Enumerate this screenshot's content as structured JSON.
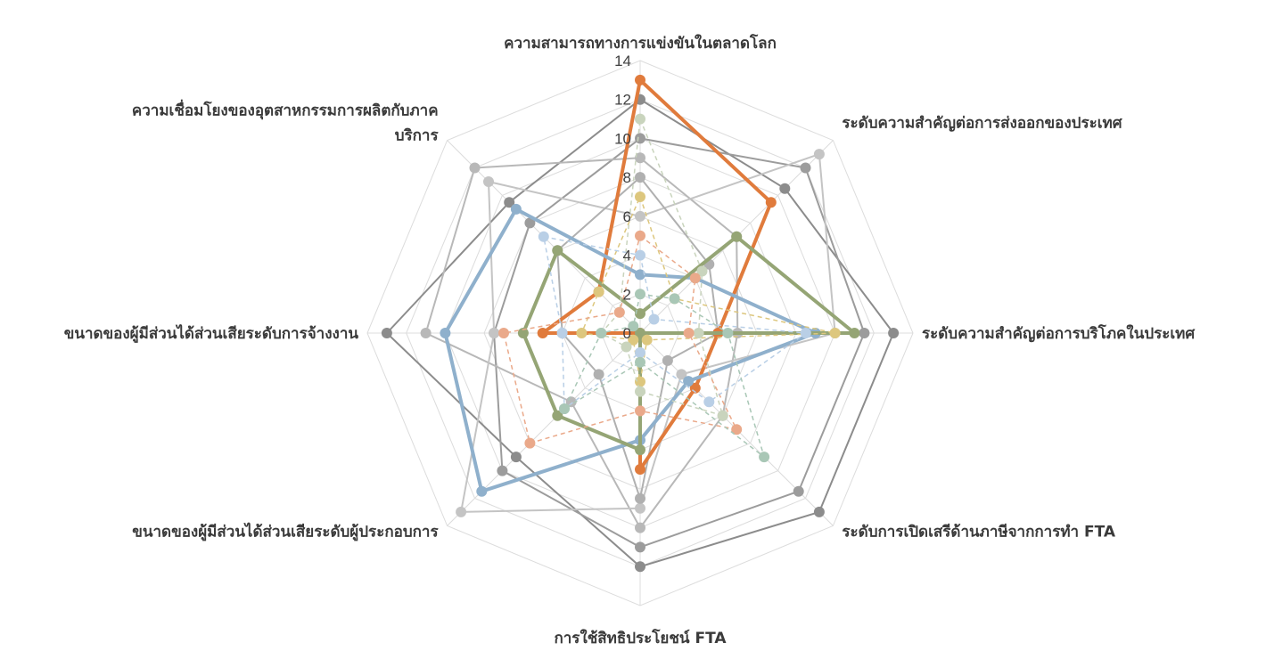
{
  "chart_data": {
    "type": "radar",
    "axes": [
      [
        "ความสามารถทางการแข่งขันในตลาดโลก"
      ],
      [
        "ระดับความสำคัญต่อการส่งออกของประเทศ"
      ],
      [
        "ระดับความสำคัญต่อการบริโภคในประเทศ"
      ],
      [
        "ระดับการเปิดเสรีด้านภาษีจากการทำ FTA"
      ],
      [
        "การใช้สิทธิประโยชน์ FTA"
      ],
      [
        "ขนาดของผู้มีส่วนได้ส่วนเสียระดับผู้ประกอบการ"
      ],
      [
        "ขนาดของผู้มีส่วนได้ส่วนเสียระดับการจ้างงาน"
      ],
      [
        "ความเชื่อมโยงของอุตสาหกรรมการผลิตกับภาค",
        "บริการ"
      ]
    ],
    "ticks": [
      "0",
      "2",
      "4",
      "6",
      "8",
      "10",
      "12",
      "14"
    ],
    "rmax": 14,
    "grid": true,
    "series": [
      {
        "color": "#8c8c8c",
        "width": 2,
        "dashed": false,
        "values": [
          12,
          10.5,
          13,
          13,
          12,
          9,
          13,
          9.5
        ]
      },
      {
        "color": "#9c9c9c",
        "width": 2,
        "dashed": false,
        "values": [
          10,
          12,
          11.5,
          11.5,
          11,
          10,
          7.5,
          8
        ]
      },
      {
        "color": "#b8b8b8",
        "width": 2,
        "dashed": false,
        "values": [
          9,
          7,
          5,
          6,
          10,
          5,
          11,
          12
        ]
      },
      {
        "color": "#c4c4c4",
        "width": 2,
        "dashed": false,
        "values": [
          6,
          13,
          10,
          3,
          9,
          13,
          7.5,
          11
        ]
      },
      {
        "color": "#b0b0b0",
        "width": 2,
        "dashed": false,
        "values": [
          8,
          5,
          4,
          2,
          8.5,
          3,
          4,
          6
        ]
      },
      {
        "color": "#e07b3c",
        "width": 4,
        "dashed": false,
        "values": [
          13,
          9.5,
          4,
          4,
          7,
          0,
          5,
          3
        ]
      },
      {
        "color": "#8fb0cc",
        "width": 4,
        "dashed": false,
        "values": [
          3,
          4,
          9,
          3.5,
          5.5,
          11.5,
          10,
          9
        ]
      },
      {
        "color": "#95a575",
        "width": 4,
        "dashed": false,
        "values": [
          1,
          7,
          11,
          0,
          6,
          6,
          6,
          6
        ]
      },
      {
        "color": "#ddc77e",
        "width": 1.5,
        "dashed": true,
        "values": [
          7,
          2.5,
          10,
          0.5,
          2.5,
          0.5,
          3,
          3
        ]
      },
      {
        "color": "#c9d4bd",
        "width": 1.5,
        "dashed": true,
        "values": [
          11,
          4.5,
          3,
          6,
          3,
          1,
          2,
          1.5
        ]
      },
      {
        "color": "#eaa98a",
        "width": 1.5,
        "dashed": true,
        "values": [
          5,
          4,
          2.5,
          7,
          4,
          8,
          7,
          1.5
        ]
      },
      {
        "color": "#b9cfe6",
        "width": 1.5,
        "dashed": true,
        "values": [
          4,
          1,
          8.5,
          5,
          1,
          5.5,
          4,
          7
        ]
      },
      {
        "color": "#a9c7b6",
        "width": 1.5,
        "dashed": true,
        "values": [
          2,
          2.5,
          4.5,
          9,
          1.5,
          5.5,
          2,
          0.5
        ]
      }
    ]
  }
}
